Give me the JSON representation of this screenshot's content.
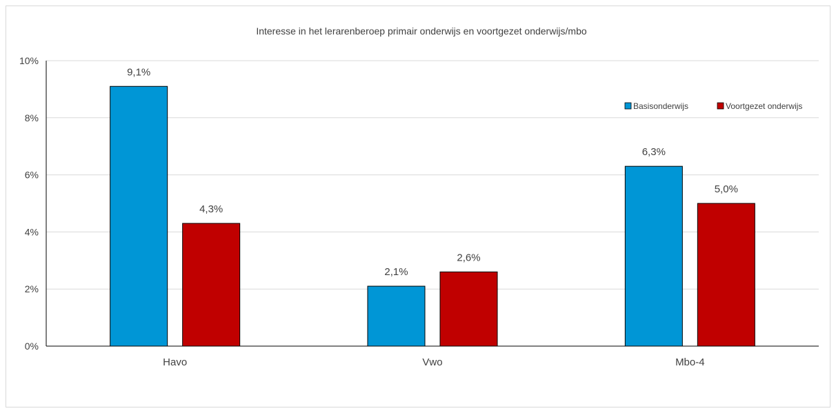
{
  "chart_data": {
    "type": "bar",
    "title": "Interesse in het lerarenberoep primair onderwijs en voortgezet onderwijs/mbo",
    "categories": [
      "Havo",
      "Vwo",
      "Mbo-4"
    ],
    "series": [
      {
        "name": "Basisonderwijs",
        "color": "#0096d6",
        "values": [
          9.1,
          2.1,
          6.3
        ],
        "labels": [
          "9,1%",
          "2,1%",
          "6,3%"
        ]
      },
      {
        "name": "Voortgezet onderwijs",
        "color": "#c00000",
        "values": [
          4.3,
          2.6,
          5.0
        ],
        "labels": [
          "4,3%",
          "2,6%",
          "5,0%"
        ]
      }
    ],
    "ylim": [
      0,
      10
    ],
    "yticks": [
      0,
      2,
      4,
      6,
      8,
      10
    ],
    "ytick_labels": [
      "0%",
      "2%",
      "4%",
      "6%",
      "8%",
      "10%"
    ],
    "grid": true,
    "legend_position": "top-right",
    "xlabel": "",
    "ylabel": ""
  }
}
